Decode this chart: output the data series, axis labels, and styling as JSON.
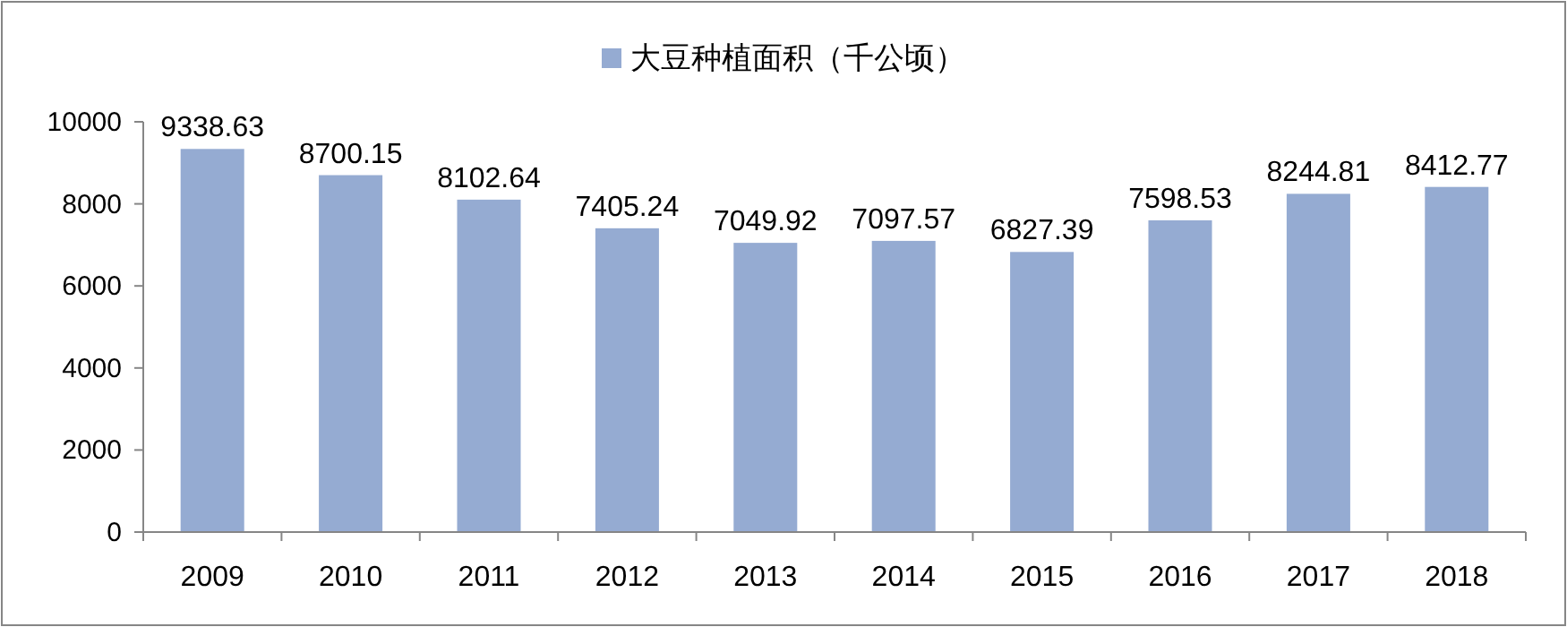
{
  "chart_data": {
    "type": "bar",
    "categories": [
      "2009",
      "2010",
      "2011",
      "2012",
      "2013",
      "2014",
      "2015",
      "2016",
      "2017",
      "2018"
    ],
    "series": [
      {
        "name": "大豆种植面积（千公顷）",
        "color": "#95abd2",
        "values": [
          9338.63,
          8700.15,
          8102.64,
          7405.24,
          7049.92,
          7097.57,
          6827.39,
          7598.53,
          8244.81,
          8412.77
        ]
      }
    ],
    "ylim": [
      0,
      10000
    ],
    "yticks": [
      0,
      2000,
      4000,
      6000,
      8000,
      10000
    ],
    "data_labels": true,
    "legend": "top",
    "grid": false
  }
}
